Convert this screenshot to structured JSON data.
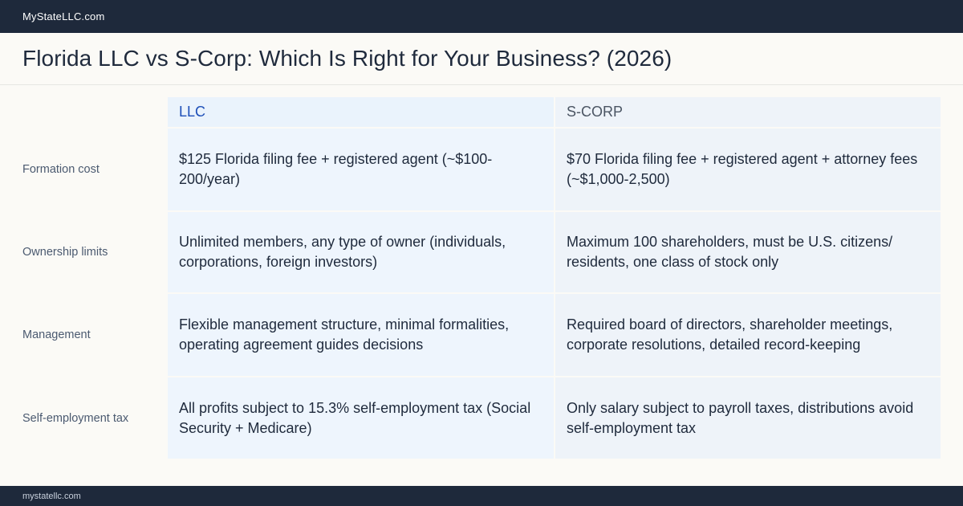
{
  "header": {
    "brand": "MyStateLLC.com"
  },
  "page": {
    "title": "Florida LLC vs S-Corp: Which Is Right for Your Business? (2026)"
  },
  "table": {
    "columns": [
      "LLC",
      "S-CORP"
    ],
    "rows": [
      {
        "label": "Formation cost",
        "llc": "$125 Florida filing fee + registered agent (~$100-200/year)",
        "scorp": "$70 Florida filing fee + registered agent + attorney fees (~$1,000-2,500)"
      },
      {
        "label": "Ownership limits",
        "llc": "Unlimited members, any type of owner (individuals, corporations, foreign investors)",
        "scorp": "Maximum 100 shareholders, must be U.S. citizens/ residents, one class of stock only"
      },
      {
        "label": "Management",
        "llc": "Flexible management structure, minimal formalities, operating agreement guides decisions",
        "scorp": "Required board of directors, shareholder meetings, corporate resolutions, detailed record-keeping"
      },
      {
        "label": "Self-employment tax",
        "llc": "All profits subject to 15.3% self-employment tax (Social Security + Medicare)",
        "scorp": "Only salary subject to payroll taxes, distributions avoid self-employment tax"
      }
    ]
  },
  "footer": {
    "domain": "mystatellc.com"
  }
}
